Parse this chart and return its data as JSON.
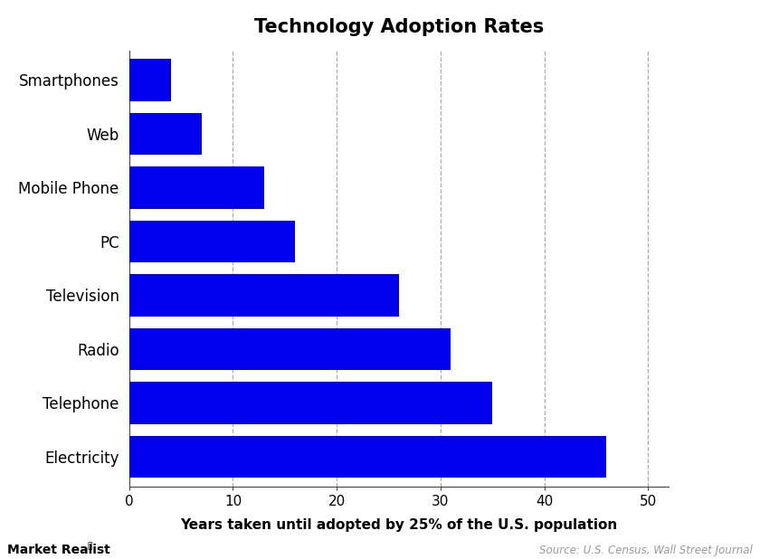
{
  "title": "Technology Adoption Rates",
  "categories": [
    "Electricity",
    "Telephone",
    "Radio",
    "Television",
    "PC",
    "Mobile Phone",
    "Web",
    "Smartphones"
  ],
  "values": [
    46,
    35,
    31,
    26,
    16,
    13,
    7,
    4
  ],
  "bar_color": "#0000EE",
  "xlabel": "Years taken until adopted by 25% of the U.S. population",
  "xlim": [
    0,
    52
  ],
  "xticks": [
    0,
    10,
    20,
    30,
    40,
    50
  ],
  "grid_color": "#AAAAAA",
  "background_color": "#FFFFFF",
  "title_fontsize": 15,
  "label_fontsize": 12,
  "tick_fontsize": 11,
  "xlabel_fontsize": 11,
  "source_text": "Source: U.S. Census, Wall Street Journal",
  "watermark_text": "Market Realist",
  "bar_height": 0.78
}
